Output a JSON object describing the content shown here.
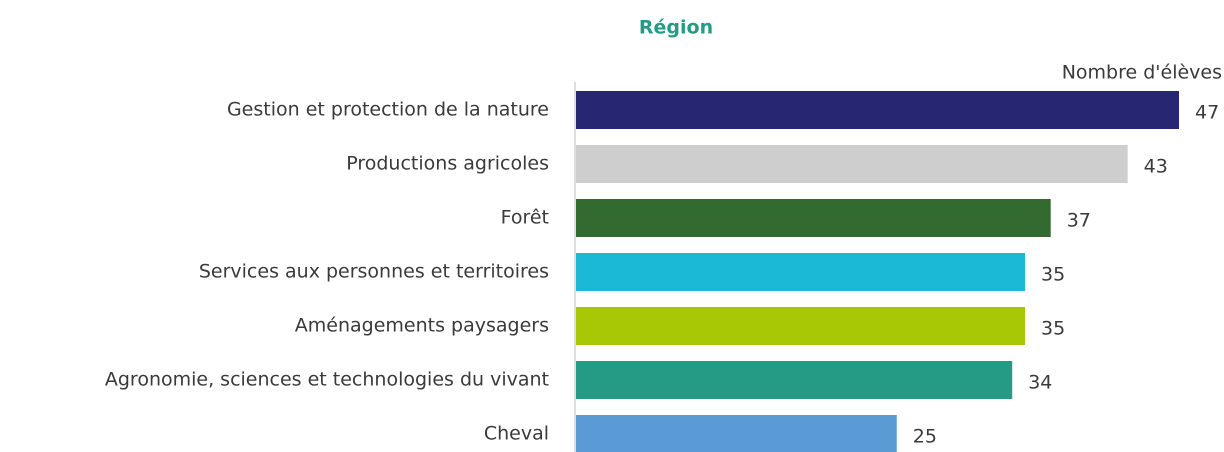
{
  "chart_data": {
    "type": "barh",
    "title": "Région",
    "xlabel": "Nombre d'élèves",
    "categories": [
      "Gestion et protection de la nature",
      "Productions agricoles",
      "Forêt",
      "Services aux personnes et territoires",
      "Aménagements paysagers",
      "Agronomie, sciences et technologies du vivant",
      "Cheval"
    ],
    "values": [
      47,
      43,
      37,
      35,
      35,
      34,
      25
    ],
    "colors": [
      "#262673",
      "#cecece",
      "#336a2f",
      "#1bb9d6",
      "#a8c806",
      "#259b86",
      "#5b9bd5"
    ],
    "xlim": [
      0,
      47
    ]
  }
}
